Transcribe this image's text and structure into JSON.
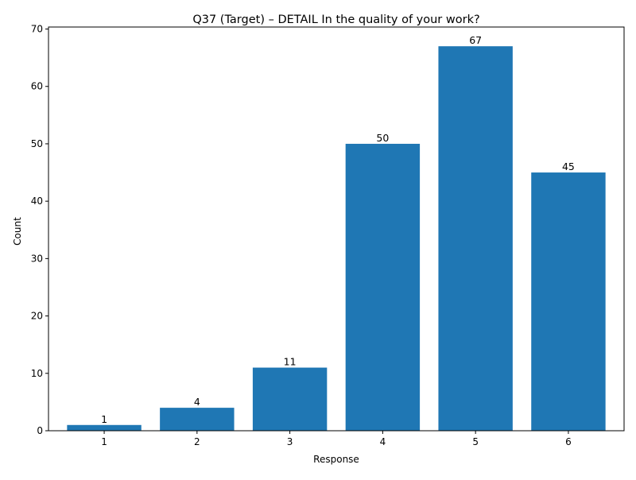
{
  "chart_data": {
    "type": "bar",
    "title": "Q37 (Target) – DETAIL In the quality of your work?",
    "xlabel": "Response",
    "ylabel": "Count",
    "categories": [
      "1",
      "2",
      "3",
      "4",
      "5",
      "6"
    ],
    "values": [
      1,
      4,
      11,
      50,
      67,
      45
    ],
    "data_labels": [
      "1",
      "4",
      "11",
      "50",
      "67",
      "45"
    ],
    "ylim": [
      0,
      70.35
    ],
    "yticks": [
      0,
      10,
      20,
      30,
      40,
      50,
      60,
      70
    ],
    "grid": false,
    "legend": "none",
    "bar_color": "#1f77b4"
  }
}
